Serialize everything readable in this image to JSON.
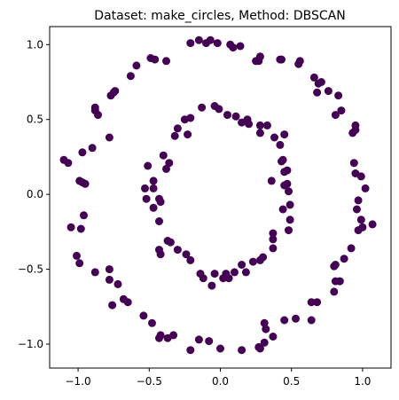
{
  "chart_data": {
    "type": "scatter",
    "title": "Dataset: make_circles, Method: DBSCAN",
    "xlabel": "",
    "ylabel": "",
    "xlim": [
      -1.2,
      1.2
    ],
    "ylim": [
      -1.16,
      1.12
    ],
    "grid": false,
    "marker_color": "#440154",
    "x_ticks": [
      {
        "value": -1.0,
        "label": "−1.0"
      },
      {
        "value": -0.5,
        "label": "−0.5"
      },
      {
        "value": 0.0,
        "label": "0.0"
      },
      {
        "value": 0.5,
        "label": "0.5"
      },
      {
        "value": 1.0,
        "label": "1.0"
      }
    ],
    "y_ticks": [
      {
        "value": -1.0,
        "label": "−1.0"
      },
      {
        "value": -0.5,
        "label": "−0.5"
      },
      {
        "value": 0.0,
        "label": "0.0"
      },
      {
        "value": 0.5,
        "label": "0.5"
      },
      {
        "value": 1.0,
        "label": "1.0"
      }
    ],
    "points": [
      [
        -0.21,
        1.01
      ],
      [
        -0.15,
        1.03
      ],
      [
        -0.1,
        1.01
      ],
      [
        -0.07,
        1.03
      ],
      [
        -0.02,
        1.01
      ],
      [
        0.07,
        1.0
      ],
      [
        0.09,
        0.98
      ],
      [
        0.14,
        0.99
      ],
      [
        0.25,
        0.89
      ],
      [
        0.27,
        0.89
      ],
      [
        0.28,
        0.92
      ],
      [
        0.42,
        0.9
      ],
      [
        0.43,
        0.9
      ],
      [
        0.55,
        0.87
      ],
      [
        0.56,
        0.89
      ],
      [
        0.66,
        0.78
      ],
      [
        0.69,
        0.74
      ],
      [
        0.71,
        0.75
      ],
      [
        0.68,
        0.68
      ],
      [
        0.76,
        0.69
      ],
      [
        0.83,
        0.66
      ],
      [
        0.81,
        0.53
      ],
      [
        0.85,
        0.56
      ],
      [
        0.93,
        0.41
      ],
      [
        0.95,
        0.43
      ],
      [
        0.95,
        0.46
      ],
      [
        0.94,
        0.21
      ],
      [
        0.95,
        0.14
      ],
      [
        0.99,
        0.12
      ],
      [
        1.02,
        0.04
      ],
      [
        0.97,
        -0.04
      ],
      [
        0.96,
        -0.1
      ],
      [
        0.99,
        -0.17
      ],
      [
        1.0,
        -0.22
      ],
      [
        0.97,
        -0.24
      ],
      [
        1.07,
        -0.2
      ],
      [
        0.92,
        -0.36
      ],
      [
        0.87,
        -0.43
      ],
      [
        0.81,
        -0.47
      ],
      [
        0.8,
        -0.48
      ],
      [
        0.81,
        -0.58
      ],
      [
        0.84,
        -0.58
      ],
      [
        0.8,
        -0.65
      ],
      [
        0.64,
        -0.72
      ],
      [
        0.68,
        -0.72
      ],
      [
        0.64,
        -0.84
      ],
      [
        0.53,
        -0.83
      ],
      [
        0.45,
        -0.84
      ],
      [
        0.37,
        -0.95
      ],
      [
        0.31,
        -0.86
      ],
      [
        0.32,
        -0.9
      ],
      [
        0.31,
        -0.99
      ],
      [
        0.28,
        -1.03
      ],
      [
        0.27,
        -1.02
      ],
      [
        0.15,
        -1.04
      ],
      [
        0.0,
        -1.03
      ],
      [
        -0.08,
        -0.98
      ],
      [
        -0.15,
        -0.97
      ],
      [
        -0.21,
        -1.04
      ],
      [
        -0.33,
        -0.94
      ],
      [
        -0.37,
        -0.96
      ],
      [
        -0.42,
        -0.94
      ],
      [
        -0.43,
        -0.96
      ],
      [
        -0.48,
        -0.86
      ],
      [
        -0.54,
        -0.81
      ],
      [
        -0.65,
        -0.72
      ],
      [
        -0.68,
        -0.7
      ],
      [
        -0.72,
        -0.6
      ],
      [
        -0.78,
        -0.5
      ],
      [
        -0.78,
        -0.57
      ],
      [
        -0.76,
        -0.74
      ],
      [
        -0.88,
        -0.52
      ],
      [
        -0.99,
        -0.46
      ],
      [
        -1.01,
        -0.41
      ],
      [
        -0.98,
        -0.23
      ],
      [
        -1.05,
        -0.22
      ],
      [
        -0.96,
        -0.14
      ],
      [
        -0.97,
        0.08
      ],
      [
        -0.95,
        0.07
      ],
      [
        -0.99,
        0.09
      ],
      [
        -1.1,
        0.23
      ],
      [
        -1.07,
        0.21
      ],
      [
        -0.97,
        0.28
      ],
      [
        -0.9,
        0.31
      ],
      [
        -0.86,
        0.53
      ],
      [
        -0.88,
        0.56
      ],
      [
        -0.88,
        0.58
      ],
      [
        -0.78,
        0.38
      ],
      [
        -0.77,
        0.66
      ],
      [
        -0.75,
        0.68
      ],
      [
        -0.74,
        0.69
      ],
      [
        -0.63,
        0.79
      ],
      [
        -0.59,
        0.86
      ],
      [
        -0.49,
        0.91
      ],
      [
        -0.46,
        0.9
      ],
      [
        -0.38,
        0.89
      ],
      [
        -0.25,
        0.5
      ],
      [
        -0.21,
        0.51
      ],
      [
        -0.13,
        0.58
      ],
      [
        -0.04,
        0.59
      ],
      [
        -0.01,
        0.57
      ],
      [
        0.05,
        0.53
      ],
      [
        0.11,
        0.52
      ],
      [
        0.15,
        0.48
      ],
      [
        0.19,
        0.5
      ],
      [
        0.2,
        0.47
      ],
      [
        0.28,
        0.46
      ],
      [
        0.33,
        0.46
      ],
      [
        0.28,
        0.41
      ],
      [
        0.38,
        0.38
      ],
      [
        0.42,
        0.33
      ],
      [
        0.45,
        0.4
      ],
      [
        0.44,
        0.23
      ],
      [
        0.43,
        0.22
      ],
      [
        0.45,
        0.15
      ],
      [
        0.47,
        0.16
      ],
      [
        0.36,
        0.09
      ],
      [
        0.45,
        0.06
      ],
      [
        0.47,
        0.07
      ],
      [
        0.48,
        0.02
      ],
      [
        0.49,
        -0.07
      ],
      [
        0.44,
        -0.1
      ],
      [
        0.49,
        -0.17
      ],
      [
        0.48,
        -0.24
      ],
      [
        0.37,
        -0.26
      ],
      [
        0.37,
        -0.3
      ],
      [
        0.37,
        -0.36
      ],
      [
        0.3,
        -0.42
      ],
      [
        0.28,
        -0.44
      ],
      [
        0.23,
        -0.45
      ],
      [
        0.18,
        -0.52
      ],
      [
        0.15,
        -0.47
      ],
      [
        0.1,
        -0.52
      ],
      [
        0.06,
        -0.56
      ],
      [
        0.04,
        -0.53
      ],
      [
        0.02,
        -0.56
      ],
      [
        -0.04,
        -0.53
      ],
      [
        -0.06,
        -0.61
      ],
      [
        -0.12,
        -0.56
      ],
      [
        -0.14,
        -0.53
      ],
      [
        -0.21,
        -0.44
      ],
      [
        -0.24,
        -0.4
      ],
      [
        -0.3,
        -0.37
      ],
      [
        -0.35,
        -0.32
      ],
      [
        -0.37,
        -0.31
      ],
      [
        -0.43,
        -0.37
      ],
      [
        -0.42,
        -0.4
      ],
      [
        -0.43,
        -0.18
      ],
      [
        -0.47,
        -0.09
      ],
      [
        -0.42,
        -0.05
      ],
      [
        -0.43,
        -0.03
      ],
      [
        -0.52,
        -0.03
      ],
      [
        -0.47,
        0.04
      ],
      [
        -0.53,
        0.04
      ],
      [
        -0.47,
        0.09
      ],
      [
        -0.51,
        0.19
      ],
      [
        -0.38,
        0.17
      ],
      [
        -0.36,
        0.21
      ],
      [
        -0.4,
        0.26
      ],
      [
        -0.32,
        0.39
      ],
      [
        -0.3,
        0.44
      ],
      [
        -0.23,
        0.4
      ]
    ]
  }
}
